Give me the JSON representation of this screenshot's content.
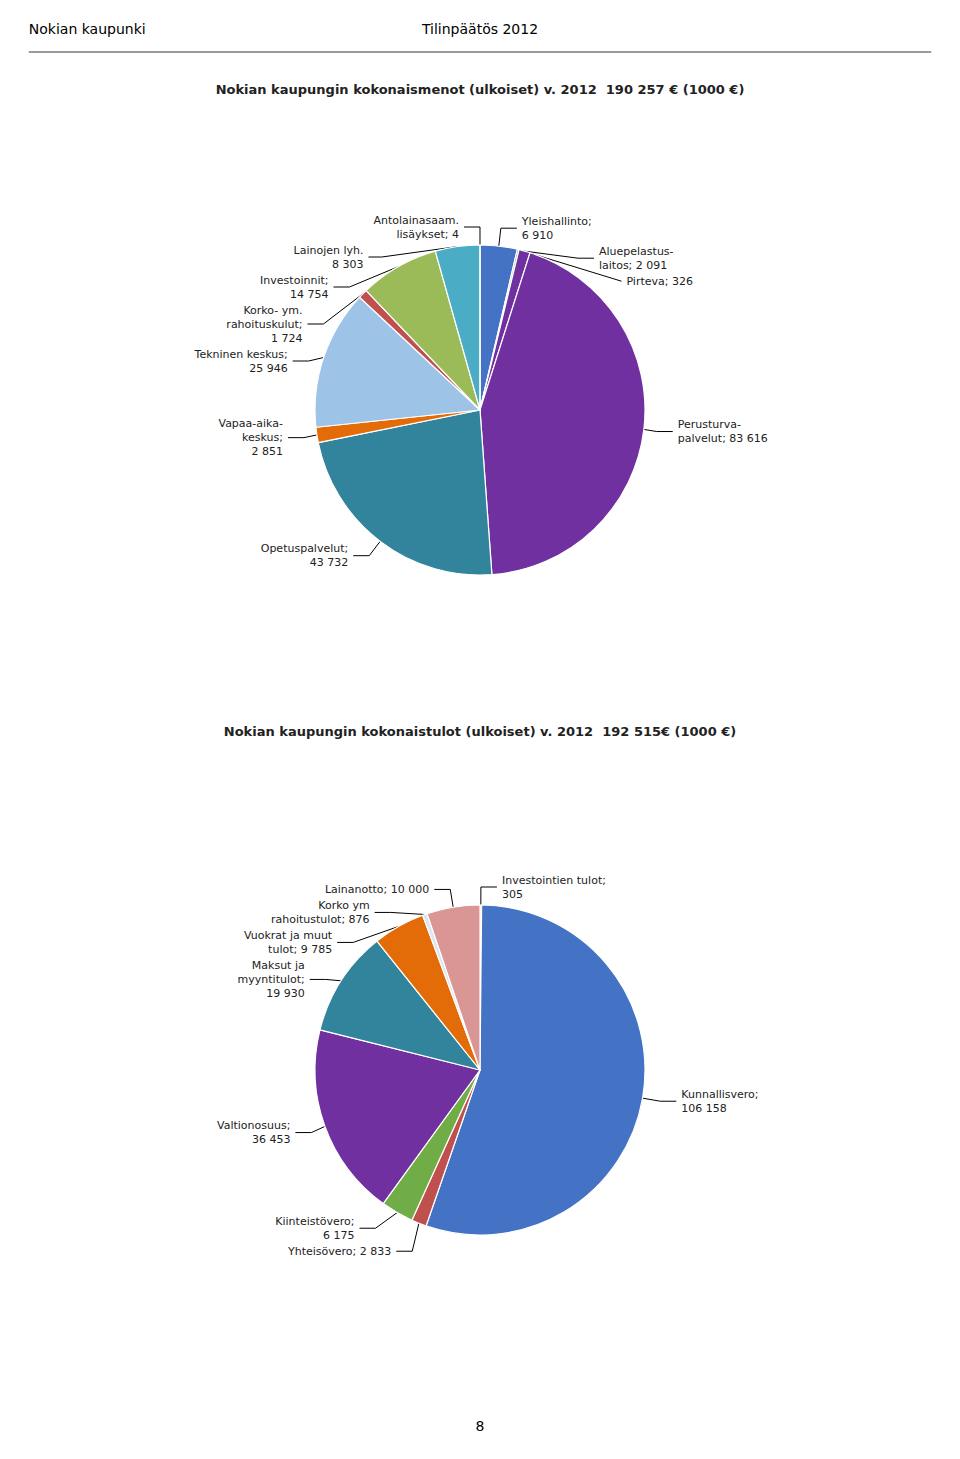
{
  "annotations": [
    "Nokian kaupunki",
    "Tilinpäätös 2012",
    "8"
  ],
  "chart_data": [
    {
      "type": "pie",
      "title": "Nokian kaupungin kokonaismenot (ulkoiset) v. 2012  190 257 € (1000 €)",
      "categories": [
        "Yleishallinto;\n6 910",
        "Pirteva; 326",
        "Aluepelastus-\nlaitos; 2 091",
        "Perusturva-\npalvelut; 83 616",
        "Opetuspalvelut;\n43 732",
        "Vapaa-aika-\nkeskus;\n2 851",
        "Tekninen keskus;\n25 946",
        "Korko- ym.\nrahoituskulut;\n1 724",
        "Investoinnit;\n14 754",
        "Lainojen lyh.\n8 303",
        "Antolainasaam.\nlisäykset; 4"
      ],
      "values": [
        6910,
        326,
        2091,
        83616,
        43732,
        2851,
        25946,
        1724,
        14754,
        8303,
        4
      ],
      "colors": [
        "#4472c4",
        "#70ad47",
        "#7030a0",
        "#7030a0",
        "#31849b",
        "#e36c09",
        "#9dc3e6",
        "#c0504d",
        "#9bbb59",
        "#4bacc6",
        "#4472c4"
      ]
    },
    {
      "type": "pie",
      "title": "Nokian kaupungin kokonaistulot (ulkoiset) v. 2012  192 515€ (1000 €)",
      "categories": [
        "Investointien tulot;\n305",
        "Kunnallisvero;\n106 158",
        "Yhteisövero; 2 833",
        "Kiinteistövero;\n6 175",
        "Valtionosuus;\n36 453",
        "Maksut ja\nmyyntitulot;\n19 930",
        "Vuokrat ja muut\ntulot; 9 785",
        "Korko ym\nrahoitustulot; 876",
        "Lainanotto; 10 000"
      ],
      "values": [
        305,
        106158,
        2833,
        6175,
        36453,
        19930,
        9785,
        876,
        10000
      ],
      "colors": [
        "#ffd966",
        "#4472c4",
        "#c0504d",
        "#70ad47",
        "#7030a0",
        "#31849b",
        "#e36c09",
        "#dce6f1",
        "#d99694"
      ]
    }
  ]
}
